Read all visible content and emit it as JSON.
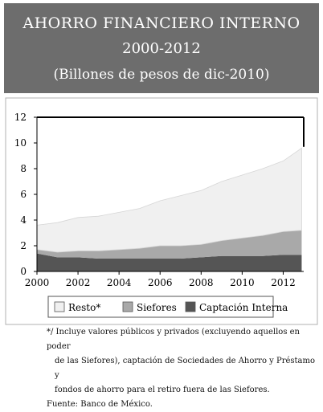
{
  "header": {
    "title": "AHORRO FINANCIERO INTERNO",
    "period": "2000-2012",
    "units": "(Billones de pesos de dic-2010)"
  },
  "footnote": {
    "line1": "*/ Incluye valores públicos y privados (excluyendo aquellos en poder",
    "line2": "de las Siefores), captación de Sociedades de Ahorro y Préstamo y",
    "line3": "fondos de ahorro para el retiro fuera de las Siefores.",
    "source": "Fuente: Banco de México."
  },
  "chart_data": {
    "type": "area",
    "stacked": true,
    "x_labels": [
      "2000",
      "2002",
      "2004",
      "2006",
      "2008",
      "2010",
      "2012"
    ],
    "x": [
      2000,
      2001,
      2002,
      2003,
      2004,
      2005,
      2006,
      2007,
      2008,
      2009,
      2010,
      2011,
      2012,
      2012.9
    ],
    "xlim": [
      2000,
      2013
    ],
    "ylim": [
      0,
      12
    ],
    "y_ticks": [
      0,
      2,
      4,
      6,
      8,
      10,
      12
    ],
    "grid": false,
    "legend_position": "bottom",
    "series": [
      {
        "name": "Captación Interna",
        "color": "#555555",
        "values": [
          1.4,
          1.1,
          1.1,
          1.0,
          1.0,
          1.0,
          1.0,
          1.0,
          1.1,
          1.2,
          1.2,
          1.2,
          1.3,
          1.3
        ]
      },
      {
        "name": "Siefores",
        "color": "#a9a9a9",
        "values": [
          0.3,
          0.4,
          0.5,
          0.6,
          0.7,
          0.8,
          1.0,
          1.0,
          1.0,
          1.2,
          1.4,
          1.6,
          1.8,
          1.9
        ]
      },
      {
        "name": "Resto*",
        "color": "#f0f0f0",
        "values": [
          1.9,
          2.3,
          2.6,
          2.7,
          2.9,
          3.1,
          3.5,
          3.9,
          4.2,
          4.6,
          4.9,
          5.2,
          5.5,
          6.4
        ]
      }
    ]
  }
}
